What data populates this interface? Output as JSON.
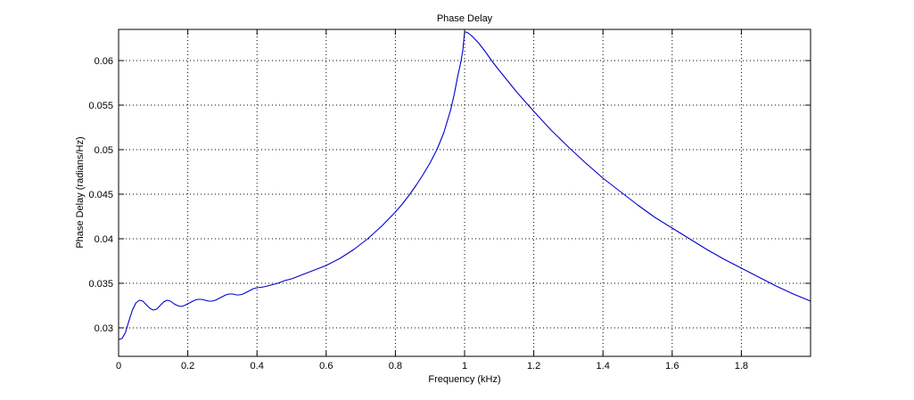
{
  "chart_data": {
    "type": "line",
    "title": "Phase Delay",
    "xlabel": "Frequency (kHz)",
    "ylabel": "Phase Delay (radians/Hz)",
    "xlim": [
      0,
      2
    ],
    "ylim": [
      0.0268,
      0.0635
    ],
    "grid": true,
    "x_ticks": [
      0,
      0.2,
      0.4,
      0.6,
      0.8,
      1,
      1.2,
      1.4,
      1.6,
      1.8
    ],
    "x_tick_labels": [
      "0",
      "0.2",
      "0.4",
      "0.6",
      "0.8",
      "1",
      "1.2",
      "1.4",
      "1.6",
      "1.8"
    ],
    "y_ticks": [
      0.03,
      0.035,
      0.04,
      0.045,
      0.05,
      0.055,
      0.06
    ],
    "y_tick_labels": [
      "0.03",
      "0.035",
      "0.04",
      "0.045",
      "0.05",
      "0.055",
      "0.06"
    ],
    "series": [
      {
        "color": "#0000cc",
        "x": [
          0,
          0.01,
          0.02,
          0.03,
          0.04,
          0.05,
          0.06,
          0.07,
          0.08,
          0.09,
          0.1,
          0.11,
          0.12,
          0.13,
          0.14,
          0.15,
          0.16,
          0.17,
          0.18,
          0.19,
          0.2,
          0.21,
          0.22,
          0.23,
          0.24,
          0.25,
          0.26,
          0.27,
          0.28,
          0.29,
          0.3,
          0.31,
          0.32,
          0.33,
          0.34,
          0.35,
          0.36,
          0.37,
          0.38,
          0.39,
          0.4,
          0.42,
          0.44,
          0.46,
          0.48,
          0.5,
          0.52,
          0.54,
          0.56,
          0.58,
          0.6,
          0.62,
          0.64,
          0.66,
          0.68,
          0.7,
          0.72,
          0.74,
          0.76,
          0.78,
          0.8,
          0.82,
          0.84,
          0.86,
          0.88,
          0.9,
          0.92,
          0.94,
          0.96,
          0.97,
          0.98,
          0.99,
          0.995,
          1.0,
          1.005,
          1.01,
          1.02,
          1.04,
          1.06,
          1.08,
          1.1,
          1.15,
          1.2,
          1.25,
          1.3,
          1.35,
          1.4,
          1.45,
          1.5,
          1.55,
          1.6,
          1.65,
          1.7,
          1.75,
          1.8,
          1.85,
          1.9,
          1.95,
          2.0
        ],
        "y": [
          0.0287,
          0.0288,
          0.0295,
          0.0308,
          0.032,
          0.0328,
          0.0331,
          0.033,
          0.0326,
          0.0322,
          0.032,
          0.0321,
          0.0325,
          0.0329,
          0.0331,
          0.033,
          0.0327,
          0.0325,
          0.0324,
          0.0325,
          0.0327,
          0.0329,
          0.0331,
          0.0332,
          0.0332,
          0.0331,
          0.033,
          0.033,
          0.0331,
          0.0333,
          0.0335,
          0.0337,
          0.0338,
          0.0338,
          0.0337,
          0.0337,
          0.0338,
          0.034,
          0.0342,
          0.0344,
          0.0345,
          0.0346,
          0.0348,
          0.035,
          0.0353,
          0.0355,
          0.0358,
          0.0361,
          0.0364,
          0.0367,
          0.037,
          0.0374,
          0.0378,
          0.0383,
          0.0388,
          0.0394,
          0.04,
          0.0407,
          0.0414,
          0.0422,
          0.043,
          0.0439,
          0.0449,
          0.046,
          0.0472,
          0.0485,
          0.05,
          0.0519,
          0.0545,
          0.0562,
          0.0582,
          0.06,
          0.0612,
          0.0632,
          0.0632,
          0.0631,
          0.0628,
          0.062,
          0.061,
          0.0599,
          0.0589,
          0.0565,
          0.0543,
          0.0522,
          0.0503,
          0.0485,
          0.0468,
          0.0453,
          0.0438,
          0.0424,
          0.0412,
          0.04,
          0.0388,
          0.0377,
          0.0367,
          0.0357,
          0.0347,
          0.0338,
          0.033
        ]
      }
    ]
  }
}
